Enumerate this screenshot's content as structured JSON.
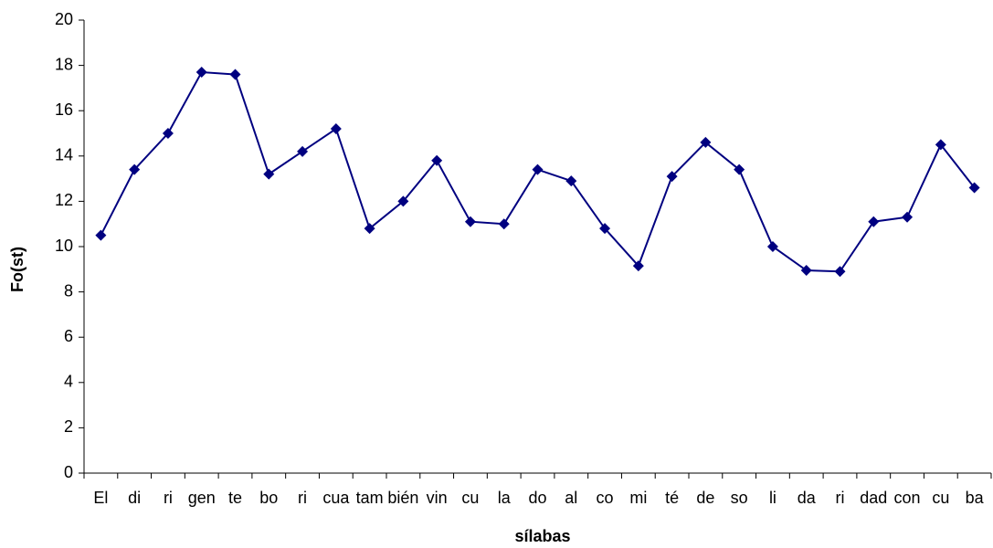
{
  "chart_data": {
    "type": "line",
    "xlabel": "sílabas",
    "ylabel": "Fo(st)",
    "categories": [
      "El",
      "di",
      "ri",
      "gen",
      "te",
      "bo",
      "ri",
      "cua",
      "tam",
      "bién",
      "vin",
      "cu",
      "la",
      "do",
      "al",
      "co",
      "mi",
      "té",
      "de",
      "so",
      "li",
      "da",
      "ri",
      "dad",
      "con",
      "cu",
      "ba"
    ],
    "values": [
      10.5,
      13.4,
      15.0,
      17.7,
      17.6,
      13.2,
      14.2,
      15.2,
      10.8,
      12.0,
      13.8,
      11.1,
      11.0,
      13.4,
      12.9,
      10.8,
      9.15,
      13.1,
      14.6,
      13.4,
      10.0,
      8.95,
      8.9,
      11.1,
      11.3,
      14.5,
      12.6
    ],
    "color": "#000080",
    "ylim": [
      0,
      20
    ],
    "yticks": [
      0,
      2,
      4,
      6,
      8,
      10,
      12,
      14,
      16,
      18,
      20
    ],
    "grid": false
  }
}
